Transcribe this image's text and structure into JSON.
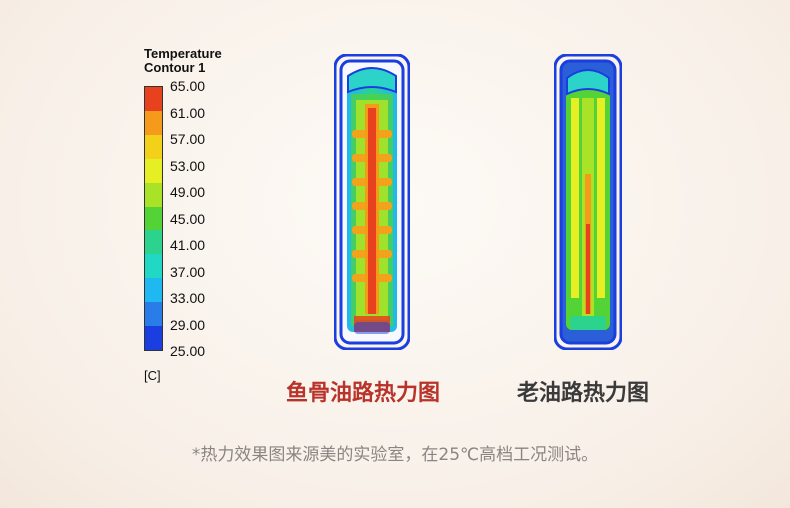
{
  "legend": {
    "title_line1": "Temperature",
    "title_line2": "Contour 1",
    "unit": "[C]",
    "ticks": [
      "65.00",
      "61.00",
      "57.00",
      "53.00",
      "49.00",
      "45.00",
      "41.00",
      "37.00",
      "33.00",
      "29.00",
      "25.00"
    ],
    "colors": [
      "#e8411e",
      "#f59a1a",
      "#f3d11b",
      "#e5ef23",
      "#a9e327",
      "#54d336",
      "#2bd38d",
      "#21d8c4",
      "#1fb8f0",
      "#2a7de8",
      "#1b3ee0"
    ]
  },
  "left_caption": "鱼骨油路热力图",
  "right_caption": "老油路热力图",
  "footnote": "*热力效果图来源美的实验室，在25℃高档工况测试。",
  "colors": {
    "left_caption": "#b8332a",
    "right_caption": "#3a3a3a"
  }
}
